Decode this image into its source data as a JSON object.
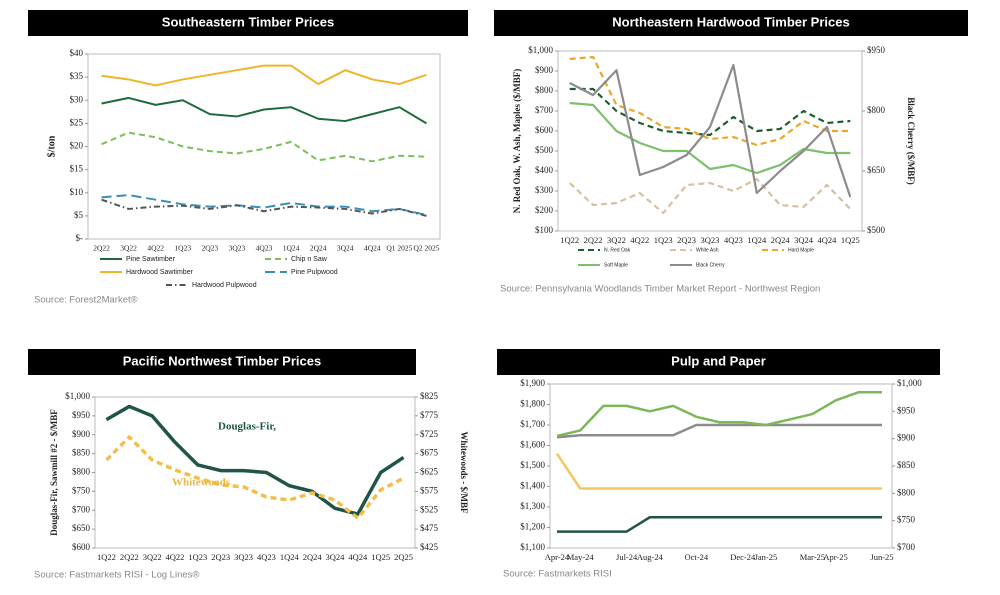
{
  "chart_data": [
    {
      "type": "line",
      "title": "Southeastern Timber Prices",
      "y_label": "$/ton",
      "source": "Source: Forest2Market®",
      "categories": [
        "2Q22",
        "3Q22",
        "4Q22",
        "1Q23",
        "2Q23",
        "3Q23",
        "4Q23",
        "1Q24",
        "2Q24",
        "3Q24",
        "4Q24",
        "Q1 2025",
        "Q2 2025"
      ],
      "ylim": [
        0,
        40
      ],
      "yticks": [
        {
          "value": 0,
          "label": "$-"
        },
        {
          "value": 5,
          "label": "$5"
        },
        {
          "value": 10,
          "label": "$10"
        },
        {
          "value": 15,
          "label": "$15"
        },
        {
          "value": 20,
          "label": "$20"
        },
        {
          "value": 25,
          "label": "$25"
        },
        {
          "value": 30,
          "label": "$30"
        },
        {
          "value": 35,
          "label": "$35"
        },
        {
          "value": 40,
          "label": "$40"
        }
      ],
      "legend": "bottom",
      "series": [
        {
          "name": "Pine Sawtimber",
          "color": "#1e6b3a",
          "style": "solid",
          "values": [
            29.3,
            30.5,
            29,
            30,
            27,
            26.5,
            28,
            28.5,
            26,
            25.5,
            27,
            28.5,
            25
          ]
        },
        {
          "name": "Chip n Saw",
          "color": "#7cbf5a",
          "style": "dashed",
          "values": [
            20.5,
            23,
            22,
            20,
            19,
            18.5,
            19.5,
            21,
            17,
            18,
            16.8,
            18,
            17.8
          ]
        },
        {
          "name": "Hardwood Sawtimber",
          "color": "#f0b429",
          "style": "solid",
          "values": [
            35.3,
            34.5,
            33.2,
            34.5,
            35.5,
            36.5,
            37.5,
            37.5,
            33.5,
            36.5,
            34.5,
            33.5,
            35.5
          ]
        },
        {
          "name": "Pine Pulpwood",
          "color": "#3a8fb7",
          "style": "longdash",
          "values": [
            9,
            9.5,
            8.5,
            7.5,
            7,
            7.3,
            6.8,
            7.8,
            7,
            7,
            6,
            6.5,
            5.2
          ]
        },
        {
          "name": "Hardwood Pulpwood",
          "color": "#555555",
          "style": "dashdot",
          "values": [
            8.5,
            6.5,
            7,
            7.2,
            6.5,
            7.3,
            6,
            7,
            6.8,
            6.5,
            5.5,
            6.5,
            5
          ]
        }
      ]
    },
    {
      "type": "line",
      "title": "Northeastern Hardwood Timber Prices",
      "y_label": "N. Red Oak, W. Ash, Maples ($/MBF)",
      "y2_label": "Black Cherry ($/MBF)",
      "source": "Source: Pennsylvania Woodlands Timber Market Report - Northwest Region",
      "categories": [
        "1Q22",
        "2Q22",
        "3Q22",
        "4Q22",
        "1Q23",
        "2Q23",
        "3Q23",
        "4Q23",
        "1Q24",
        "2Q24",
        "3Q24",
        "4Q24",
        "1Q25"
      ],
      "ylim": [
        100,
        1000
      ],
      "yticks": [
        {
          "value": 100,
          "label": "$100"
        },
        {
          "value": 200,
          "label": "$200"
        },
        {
          "value": 300,
          "label": "$300"
        },
        {
          "value": 400,
          "label": "$400"
        },
        {
          "value": 500,
          "label": "$500"
        },
        {
          "value": 600,
          "label": "$600"
        },
        {
          "value": 700,
          "label": "$700"
        },
        {
          "value": 800,
          "label": "$800"
        },
        {
          "value": 900,
          "label": "$900"
        },
        {
          "value": 1000,
          "label": "$1,000"
        }
      ],
      "y2lim": [
        500,
        950
      ],
      "y2ticks": [
        {
          "value": 500,
          "label": "$500"
        },
        {
          "value": 650,
          "label": "$650"
        },
        {
          "value": 800,
          "label": "$800"
        },
        {
          "value": 950,
          "label": "$950"
        }
      ],
      "legend": "bottom",
      "series": [
        {
          "name": "N. Red Oak",
          "color": "#1e5c32",
          "style": "dashed",
          "values": [
            810,
            810,
            700,
            640,
            600,
            590,
            580,
            670,
            600,
            610,
            700,
            640,
            650
          ]
        },
        {
          "name": "White Ash",
          "color": "#d9bfa0",
          "style": "dashed",
          "values": [
            340,
            230,
            240,
            290,
            190,
            330,
            340,
            300,
            360,
            230,
            220,
            330,
            210
          ]
        },
        {
          "name": "Hard Maple",
          "color": "#e8a92a",
          "style": "dashed",
          "values": [
            960,
            970,
            730,
            690,
            620,
            610,
            560,
            570,
            530,
            560,
            650,
            600,
            600
          ]
        },
        {
          "name": "Soft Maple",
          "color": "#7cc06a",
          "style": "solid",
          "values": [
            740,
            730,
            600,
            540,
            500,
            500,
            410,
            430,
            390,
            430,
            510,
            490,
            490
          ]
        },
        {
          "name": "Black Cherry",
          "color": "#8c8c8c",
          "style": "solid",
          "axis": "y2",
          "values": [
            870,
            840,
            902,
            640,
            660,
            690,
            760,
            915,
            595,
            650,
            700,
            760,
            585
          ]
        }
      ]
    },
    {
      "type": "line",
      "title": "Pacific Northwest Timber Prices",
      "y_label": "Douglas-Fir, Sawmill #2 - $/MBF",
      "y2_label": "Whitewoods - $/MBF",
      "source": "Source: Fastmarkets RISI - Log Lines®",
      "categories": [
        "1Q22",
        "2Q22",
        "3Q22",
        "4Q22",
        "1Q23",
        "2Q23",
        "3Q23",
        "4Q23",
        "1Q24",
        "2Q24",
        "3Q24",
        "4Q24",
        "1Q25",
        "2Q25"
      ],
      "ylim": [
        600,
        1000
      ],
      "yticks": [
        {
          "value": 600,
          "label": "$600"
        },
        {
          "value": 650,
          "label": "$650"
        },
        {
          "value": 700,
          "label": "$700"
        },
        {
          "value": 750,
          "label": "$750"
        },
        {
          "value": 800,
          "label": "$800"
        },
        {
          "value": 850,
          "label": "$850"
        },
        {
          "value": 900,
          "label": "$900"
        },
        {
          "value": 950,
          "label": "$950"
        },
        {
          "value": 1000,
          "label": "$1,000"
        }
      ],
      "y2lim": [
        425,
        825
      ],
      "y2ticks": [
        {
          "value": 425,
          "label": "$425"
        },
        {
          "value": 475,
          "label": "$475"
        },
        {
          "value": 525,
          "label": "$525"
        },
        {
          "value": 575,
          "label": "$575"
        },
        {
          "value": 625,
          "label": "$625"
        },
        {
          "value": 675,
          "label": "$675"
        },
        {
          "value": 725,
          "label": "$725"
        },
        {
          "value": 775,
          "label": "$775"
        },
        {
          "value": 825,
          "label": "$825"
        }
      ],
      "annotations": [
        "Douglas-Fir,",
        "Whitewoods"
      ],
      "series": [
        {
          "color": "#1f5446",
          "style": "solid",
          "values": [
            940,
            975,
            950,
            880,
            820,
            805,
            805,
            800,
            765,
            750,
            705,
            690,
            800,
            840
          ]
        },
        {
          "color": "#f2c04a",
          "style": "dashed",
          "axis": "y2",
          "values": [
            658,
            719,
            658,
            632,
            610,
            592,
            587,
            560,
            552,
            571,
            552,
            504,
            579,
            610
          ]
        }
      ]
    },
    {
      "type": "line",
      "title": "Pulp and Paper",
      "source": "Source: Fastmarkets RISI",
      "categories": [
        "Apr-24",
        "May-24",
        null,
        "Jul-24",
        "Aug-24",
        null,
        "Oct-24",
        null,
        "Dec-24",
        "Jan-25",
        null,
        "Mar-25",
        "Apr-25",
        null,
        "Jun-25"
      ],
      "ylim": [
        1100,
        1900
      ],
      "yticks": [
        {
          "value": 1100,
          "label": "$1,100"
        },
        {
          "value": 1200,
          "label": "$1,200"
        },
        {
          "value": 1300,
          "label": "$1,300"
        },
        {
          "value": 1400,
          "label": "$1,400"
        },
        {
          "value": 1500,
          "label": "$1,500"
        },
        {
          "value": 1600,
          "label": "$1,600"
        },
        {
          "value": 1700,
          "label": "$1,700"
        },
        {
          "value": 1800,
          "label": "$1,800"
        },
        {
          "value": 1900,
          "label": "$1,900"
        }
      ],
      "y2lim": [
        700,
        1000
      ],
      "y2ticks": [
        {
          "value": 700,
          "label": "$700"
        },
        {
          "value": 750,
          "label": "$750"
        },
        {
          "value": 800,
          "label": "$800"
        },
        {
          "value": 850,
          "label": "$850"
        },
        {
          "value": 900,
          "label": "$900"
        },
        {
          "value": 950,
          "label": "$950"
        },
        {
          "value": 1000,
          "label": "$1,000"
        }
      ],
      "series": [
        {
          "color": "#f2c75c",
          "style": "solid",
          "values": [
            1560,
            1390,
            1390,
            1390,
            1390,
            1390,
            1390,
            1390,
            1390,
            1390,
            1390,
            1390,
            1390,
            1390,
            1390
          ]
        },
        {
          "color": "#1f5446",
          "style": "solid",
          "values": [
            1180,
            1180,
            1180,
            1180,
            1250,
            1250,
            1250,
            1250,
            1250,
            1250,
            1250,
            1250,
            1250,
            1250,
            1250
          ]
        },
        {
          "color": "#8c8c8c",
          "style": "solid",
          "values": [
            1640,
            1650,
            1650,
            1650,
            1650,
            1650,
            1700,
            1700,
            1700,
            1700,
            1700,
            1700,
            1700,
            1700,
            1700
          ]
        },
        {
          "color": "#7cb85a",
          "style": "solid",
          "axis": "y2",
          "values": [
            905,
            915,
            960,
            960,
            950,
            960,
            940,
            930,
            930,
            925,
            935,
            945,
            970,
            985,
            985
          ]
        }
      ]
    }
  ]
}
